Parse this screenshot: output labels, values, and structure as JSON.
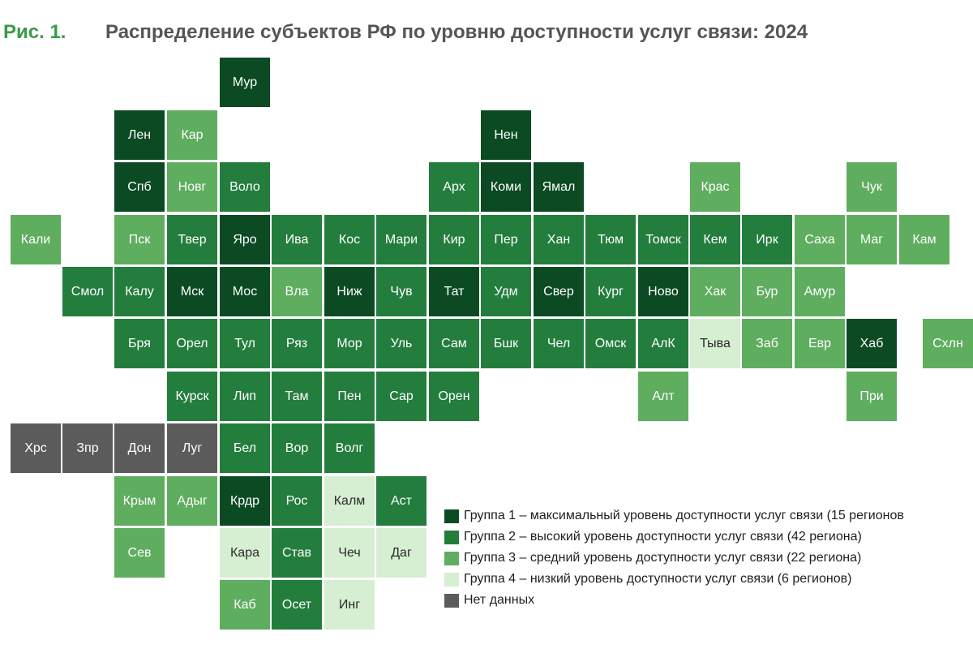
{
  "title": {
    "figure_number": "Рис. 1.",
    "text": "Распределение субъектов РФ по уровню доступности услуг связи: 2024"
  },
  "colors": {
    "group1": "#0b4a23",
    "group2": "#237d3d",
    "group3": "#5fad5f",
    "group4": "#d6eed2",
    "no_data": "#5b5b5b"
  },
  "regions": [
    {
      "label": "Мур",
      "group": "1"
    },
    {
      "label": "Лен",
      "group": "1"
    },
    {
      "label": "Кар",
      "group": "3"
    },
    {
      "label": "Нен",
      "group": "1"
    },
    {
      "label": "Спб",
      "group": "1"
    },
    {
      "label": "Новг",
      "group": "3"
    },
    {
      "label": "Воло",
      "group": "2"
    },
    {
      "label": "Арх",
      "group": "2"
    },
    {
      "label": "Коми",
      "group": "1"
    },
    {
      "label": "Ямал",
      "group": "1"
    },
    {
      "label": "Крас",
      "group": "3"
    },
    {
      "label": "Чук",
      "group": "3"
    },
    {
      "label": "Кали",
      "group": "3"
    },
    {
      "label": "Пск",
      "group": "3"
    },
    {
      "label": "Твер",
      "group": "2"
    },
    {
      "label": "Яро",
      "group": "1"
    },
    {
      "label": "Ива",
      "group": "2"
    },
    {
      "label": "Кос",
      "group": "2"
    },
    {
      "label": "Мари",
      "group": "2"
    },
    {
      "label": "Кир",
      "group": "2"
    },
    {
      "label": "Пер",
      "group": "2"
    },
    {
      "label": "Хан",
      "group": "2"
    },
    {
      "label": "Тюм",
      "group": "2"
    },
    {
      "label": "Томск",
      "group": "2"
    },
    {
      "label": "Кем",
      "group": "2"
    },
    {
      "label": "Ирк",
      "group": "2"
    },
    {
      "label": "Саха",
      "group": "3"
    },
    {
      "label": "Маг",
      "group": "3"
    },
    {
      "label": "Кам",
      "group": "3"
    },
    {
      "label": "Смол",
      "group": "2"
    },
    {
      "label": "Калу",
      "group": "2"
    },
    {
      "label": "Мск",
      "group": "1"
    },
    {
      "label": "Мос",
      "group": "1"
    },
    {
      "label": "Вла",
      "group": "3"
    },
    {
      "label": "Ниж",
      "group": "1"
    },
    {
      "label": "Чув",
      "group": "2"
    },
    {
      "label": "Тат",
      "group": "1"
    },
    {
      "label": "Удм",
      "group": "2"
    },
    {
      "label": "Свер",
      "group": "1"
    },
    {
      "label": "Кург",
      "group": "2"
    },
    {
      "label": "Ново",
      "group": "1"
    },
    {
      "label": "Хак",
      "group": "3"
    },
    {
      "label": "Бур",
      "group": "3"
    },
    {
      "label": "Амур",
      "group": "3"
    },
    {
      "label": "Бря",
      "group": "2"
    },
    {
      "label": "Орел",
      "group": "2"
    },
    {
      "label": "Тул",
      "group": "2"
    },
    {
      "label": "Ряз",
      "group": "2"
    },
    {
      "label": "Мор",
      "group": "2"
    },
    {
      "label": "Уль",
      "group": "2"
    },
    {
      "label": "Сам",
      "group": "2"
    },
    {
      "label": "Бшк",
      "group": "2"
    },
    {
      "label": "Чел",
      "group": "2"
    },
    {
      "label": "Омск",
      "group": "2"
    },
    {
      "label": "АлК",
      "group": "2"
    },
    {
      "label": "Тыва",
      "group": "4"
    },
    {
      "label": "Заб",
      "group": "3"
    },
    {
      "label": "Евр",
      "group": "3"
    },
    {
      "label": "Хаб",
      "group": "1"
    },
    {
      "label": "Схлн",
      "group": "3"
    },
    {
      "label": "Курск",
      "group": "2"
    },
    {
      "label": "Лип",
      "group": "2"
    },
    {
      "label": "Там",
      "group": "2"
    },
    {
      "label": "Пен",
      "group": "2"
    },
    {
      "label": "Сар",
      "group": "2"
    },
    {
      "label": "Орен",
      "group": "2"
    },
    {
      "label": "Алт",
      "group": "3"
    },
    {
      "label": "При",
      "group": "3"
    },
    {
      "label": "Хрс",
      "group": "0"
    },
    {
      "label": "Зпр",
      "group": "0"
    },
    {
      "label": "Дон",
      "group": "0"
    },
    {
      "label": "Луг",
      "group": "0"
    },
    {
      "label": "Бел",
      "group": "2"
    },
    {
      "label": "Вор",
      "group": "2"
    },
    {
      "label": "Волг",
      "group": "2"
    },
    {
      "label": "Крым",
      "group": "3"
    },
    {
      "label": "Адыг",
      "group": "3"
    },
    {
      "label": "Крдр",
      "group": "1"
    },
    {
      "label": "Рос",
      "group": "2"
    },
    {
      "label": "Калм",
      "group": "4"
    },
    {
      "label": "Аст",
      "group": "2"
    },
    {
      "label": "Сев",
      "group": "3"
    },
    {
      "label": "Кара",
      "group": "4"
    },
    {
      "label": "Став",
      "group": "2"
    },
    {
      "label": "Чеч",
      "group": "4"
    },
    {
      "label": "Даг",
      "group": "4"
    },
    {
      "label": "Каб",
      "group": "3"
    },
    {
      "label": "Осет",
      "group": "2"
    },
    {
      "label": "Инг",
      "group": "4"
    }
  ],
  "legend": [
    {
      "label": "Группа 1 – максимальный уровень доступности услуг связи (15 регионов",
      "group": "1"
    },
    {
      "label": "Группа 2 – высокий уровень доступности услуг связи (42 региона)",
      "group": "2"
    },
    {
      "label": "Группа 3 – средний уровень доступности услуг связи (22 региона)",
      "group": "3"
    },
    {
      "label": "Группа 4 – низкий уровень доступности услуг связи (6 регионов)",
      "group": "4"
    },
    {
      "label": "Нет данных",
      "group": "0"
    }
  ]
}
